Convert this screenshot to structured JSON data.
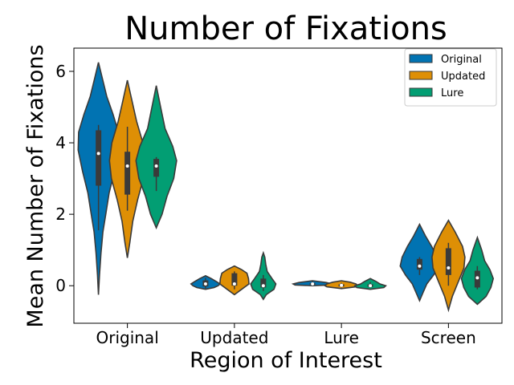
{
  "chart_data": {
    "type": "violin",
    "title": "Number of Fixations",
    "xlabel": "Region of Interest",
    "ylabel": "Mean Number of Fixations",
    "ylim": [
      -1.05,
      6.65
    ],
    "yticks": [
      0,
      2,
      4,
      6
    ],
    "categories": [
      "Original",
      "Updated",
      "Lure",
      "Screen"
    ],
    "legend_position": "top-right",
    "series": [
      {
        "name": "Original",
        "color": "#0173b2",
        "violins": [
          {
            "profile": [
              [
                -0.25,
                0
              ],
              [
                0.3,
                0.02
              ],
              [
                0.9,
                0.05
              ],
              [
                1.5,
                0.09
              ],
              [
                2.0,
                0.15
              ],
              [
                2.6,
                0.22
              ],
              [
                3.2,
                0.33
              ],
              [
                3.8,
                0.42
              ],
              [
                4.3,
                0.41
              ],
              [
                4.8,
                0.3
              ],
              [
                5.3,
                0.17
              ],
              [
                5.8,
                0.08
              ],
              [
                6.25,
                0
              ]
            ],
            "q1": 2.8,
            "median": 3.7,
            "q3": 4.35,
            "whisker_low": 1.55,
            "whisker_high": 4.5
          },
          {
            "profile": [
              [
                -0.1,
                0
              ],
              [
                -0.05,
                0.18
              ],
              [
                0.0,
                0.26
              ],
              [
                0.05,
                0.3
              ],
              [
                0.12,
                0.22
              ],
              [
                0.2,
                0.12
              ],
              [
                0.28,
                0
              ]
            ],
            "q1": -0.02,
            "median": 0.05,
            "q3": 0.15,
            "whisker_low": -0.08,
            "whisker_high": 0.22
          },
          {
            "profile": [
              [
                0.0,
                0
              ],
              [
                0.02,
                0.36
              ],
              [
                0.05,
                0.4
              ],
              [
                0.09,
                0.28
              ],
              [
                0.14,
                0
              ]
            ],
            "q1": 0.03,
            "median": 0.05,
            "q3": 0.08,
            "whisker_low": 0.0,
            "whisker_high": 0.12
          },
          {
            "profile": [
              [
                -0.42,
                0
              ],
              [
                -0.2,
                0.07
              ],
              [
                0.05,
                0.15
              ],
              [
                0.3,
                0.29
              ],
              [
                0.55,
                0.4
              ],
              [
                0.8,
                0.36
              ],
              [
                1.1,
                0.25
              ],
              [
                1.4,
                0.12
              ],
              [
                1.72,
                0
              ]
            ],
            "q1": 0.45,
            "median": 0.55,
            "q3": 0.75,
            "whisker_low": 0.3,
            "whisker_high": 0.8
          }
        ]
      },
      {
        "name": "Updated",
        "color": "#de8f05",
        "violins": [
          {
            "profile": [
              [
                0.78,
                0
              ],
              [
                1.2,
                0.05
              ],
              [
                1.8,
                0.11
              ],
              [
                2.4,
                0.21
              ],
              [
                3.0,
                0.33
              ],
              [
                3.5,
                0.37
              ],
              [
                4.0,
                0.32
              ],
              [
                4.6,
                0.19
              ],
              [
                5.2,
                0.09
              ],
              [
                5.75,
                0
              ]
            ],
            "q1": 2.55,
            "median": 3.35,
            "q3": 3.75,
            "whisker_low": 2.1,
            "whisker_high": 4.45
          },
          {
            "profile": [
              [
                -0.25,
                0
              ],
              [
                -0.1,
                0.15
              ],
              [
                0.05,
                0.3
              ],
              [
                0.2,
                0.29
              ],
              [
                0.35,
                0.26
              ],
              [
                0.45,
                0.15
              ],
              [
                0.55,
                0
              ]
            ],
            "q1": 0.0,
            "median": 0.05,
            "q3": 0.35,
            "whisker_low": -0.1,
            "whisker_high": 0.4
          },
          {
            "profile": [
              [
                -0.08,
                0
              ],
              [
                -0.03,
                0.3
              ],
              [
                0.0,
                0.34
              ],
              [
                0.05,
                0.3
              ],
              [
                0.1,
                0.18
              ],
              [
                0.14,
                0
              ]
            ],
            "q1": -0.02,
            "median": 0.01,
            "q3": 0.04,
            "whisker_low": -0.05,
            "whisker_high": 0.08
          },
          {
            "profile": [
              [
                -0.68,
                0
              ],
              [
                -0.3,
                0.08
              ],
              [
                0.1,
                0.2
              ],
              [
                0.5,
                0.32
              ],
              [
                0.8,
                0.34
              ],
              [
                1.1,
                0.29
              ],
              [
                1.5,
                0.14
              ],
              [
                1.83,
                0
              ]
            ],
            "q1": 0.3,
            "median": 0.5,
            "q3": 1.05,
            "whisker_low": 0.0,
            "whisker_high": 1.2
          }
        ]
      },
      {
        "name": "Lure",
        "color": "#029e73",
        "violins": [
          {
            "profile": [
              [
                1.62,
                0
              ],
              [
                2.0,
                0.12
              ],
              [
                2.5,
                0.22
              ],
              [
                3.0,
                0.36
              ],
              [
                3.5,
                0.42
              ],
              [
                3.9,
                0.34
              ],
              [
                4.4,
                0.18
              ],
              [
                5.0,
                0.09
              ],
              [
                5.6,
                0
              ]
            ],
            "q1": 3.05,
            "median": 3.35,
            "q3": 3.55,
            "whisker_low": 2.65,
            "whisker_high": 3.6
          },
          {
            "profile": [
              [
                -0.38,
                0
              ],
              [
                -0.25,
                0.06
              ],
              [
                -0.1,
                0.22
              ],
              [
                0.05,
                0.26
              ],
              [
                0.2,
                0.18
              ],
              [
                0.4,
                0.08
              ],
              [
                0.6,
                0.05
              ],
              [
                0.8,
                0.03
              ],
              [
                0.92,
                0
              ]
            ],
            "q1": -0.05,
            "median": 0.0,
            "q3": 0.2,
            "whisker_low": -0.15,
            "whisker_high": 0.3
          },
          {
            "profile": [
              [
                -0.1,
                0
              ],
              [
                -0.05,
                0.28
              ],
              [
                0.0,
                0.32
              ],
              [
                0.05,
                0.2
              ],
              [
                0.12,
                0.12
              ],
              [
                0.2,
                0
              ]
            ],
            "q1": -0.03,
            "median": 0.0,
            "q3": 0.04,
            "whisker_low": -0.06,
            "whisker_high": 0.1
          },
          {
            "profile": [
              [
                -0.52,
                0
              ],
              [
                -0.3,
                0.18
              ],
              [
                -0.05,
                0.28
              ],
              [
                0.2,
                0.33
              ],
              [
                0.45,
                0.26
              ],
              [
                0.7,
                0.15
              ],
              [
                1.0,
                0.09
              ],
              [
                1.35,
                0
              ]
            ],
            "q1": -0.05,
            "median": 0.22,
            "q3": 0.42,
            "whisker_low": -0.1,
            "whisker_high": 0.55
          }
        ]
      }
    ]
  }
}
